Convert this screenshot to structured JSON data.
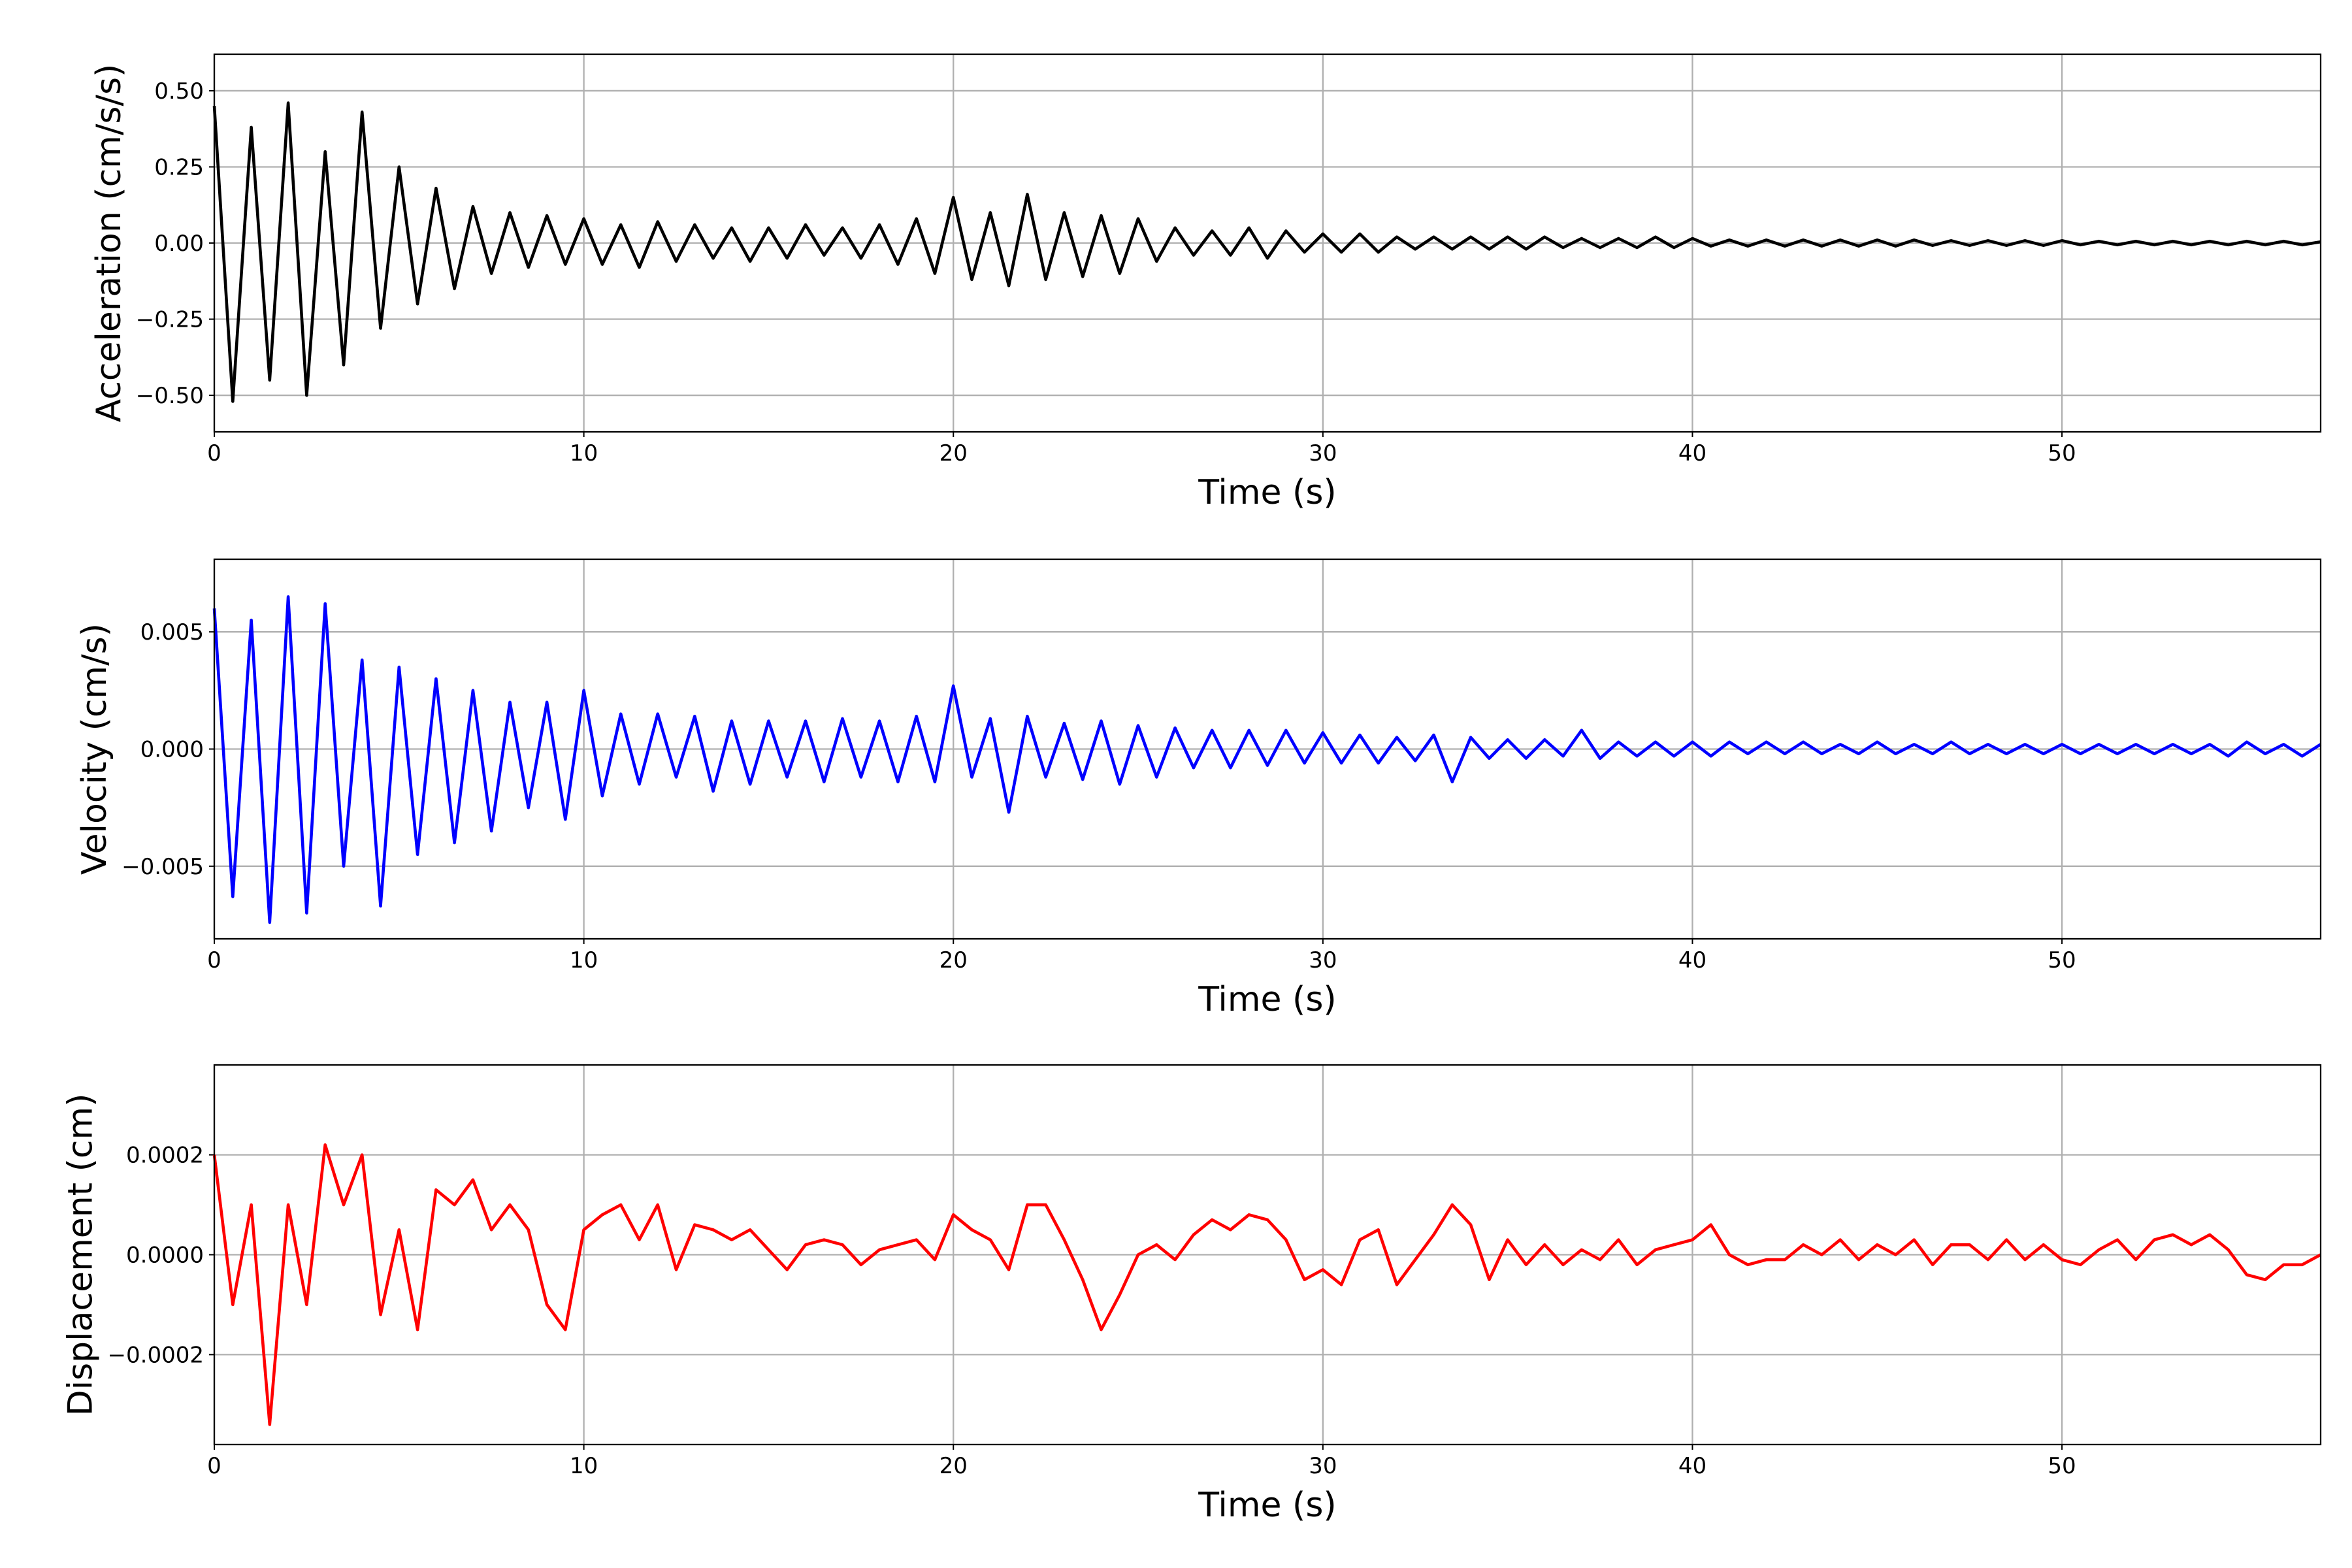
{
  "chart_data": [
    {
      "type": "line",
      "xlabel": "Time (s)",
      "ylabel": "Acceleration (cm/s/s)",
      "color": "#000000",
      "grid": true,
      "xlim": [
        0,
        57
      ],
      "xticks": [
        0,
        10,
        20,
        30,
        40,
        50
      ],
      "ylim": [
        -0.62,
        0.62
      ],
      "yticks": [
        {
          "value": -0.5,
          "label": "−0.50"
        },
        {
          "value": -0.25,
          "label": "−0.25"
        },
        {
          "value": 0,
          "label": "0.00"
        },
        {
          "value": 0.25,
          "label": "0.25"
        },
        {
          "value": 0.5,
          "label": "0.50"
        }
      ],
      "x": [
        0,
        0.5,
        1,
        1.5,
        2,
        2.5,
        3,
        3.5,
        4,
        4.5,
        5,
        5.5,
        6,
        6.5,
        7,
        7.5,
        8,
        8.5,
        9,
        9.5,
        10,
        10.5,
        11,
        11.5,
        12,
        12.5,
        13,
        13.5,
        14,
        14.5,
        15,
        15.5,
        16,
        16.5,
        17,
        17.5,
        18,
        18.5,
        19,
        19.5,
        20,
        20.5,
        21,
        21.5,
        22,
        22.5,
        23,
        23.5,
        24,
        24.5,
        25,
        25.5,
        26,
        26.5,
        27,
        27.5,
        28,
        28.5,
        29,
        29.5,
        30,
        30.5,
        31,
        31.5,
        32,
        32.5,
        33,
        33.5,
        34,
        34.5,
        35,
        35.5,
        36,
        36.5,
        37,
        37.5,
        38,
        38.5,
        39,
        39.5,
        40,
        40.5,
        41,
        41.5,
        42,
        42.5,
        43,
        43.5,
        44,
        44.5,
        45,
        45.5,
        46,
        46.5,
        47,
        47.5,
        48,
        48.5,
        49,
        49.5,
        50,
        50.5,
        51,
        51.5,
        52,
        52.5,
        53,
        53.5,
        54,
        54.5,
        55,
        55.5,
        56,
        56.5,
        57
      ],
      "values": [
        0.45,
        -0.52,
        0.38,
        -0.45,
        0.46,
        -0.5,
        0.3,
        -0.4,
        0.43,
        -0.28,
        0.25,
        -0.2,
        0.18,
        -0.15,
        0.12,
        -0.1,
        0.1,
        -0.08,
        0.09,
        -0.07,
        0.08,
        -0.07,
        0.06,
        -0.08,
        0.07,
        -0.06,
        0.06,
        -0.05,
        0.05,
        -0.06,
        0.05,
        -0.05,
        0.06,
        -0.04,
        0.05,
        -0.05,
        0.06,
        -0.07,
        0.08,
        -0.1,
        0.15,
        -0.12,
        0.1,
        -0.14,
        0.16,
        -0.12,
        0.1,
        -0.11,
        0.09,
        -0.1,
        0.08,
        -0.06,
        0.05,
        -0.04,
        0.04,
        -0.04,
        0.05,
        -0.05,
        0.04,
        -0.03,
        0.03,
        -0.03,
        0.03,
        -0.03,
        0.02,
        -0.02,
        0.02,
        -0.02,
        0.02,
        -0.02,
        0.02,
        -0.02,
        0.02,
        -0.015,
        0.015,
        -0.015,
        0.015,
        -0.015,
        0.02,
        -0.015,
        0.015,
        -0.01,
        0.01,
        -0.01,
        0.01,
        -0.01,
        0.01,
        -0.01,
        0.01,
        -0.01,
        0.01,
        -0.01,
        0.01,
        -0.008,
        0.008,
        -0.008,
        0.008,
        -0.008,
        0.008,
        -0.008,
        0.008,
        -0.006,
        0.006,
        -0.006,
        0.006,
        -0.006,
        0.006,
        -0.006,
        0.006,
        -0.006,
        0.006,
        -0.006,
        0.006,
        -0.006,
        0.004
      ]
    },
    {
      "type": "line",
      "xlabel": "Time (s)",
      "ylabel": "Velocity (cm/s)",
      "color": "#0000ff",
      "grid": true,
      "xlim": [
        0,
        57
      ],
      "xticks": [
        0,
        10,
        20,
        30,
        40,
        50
      ],
      "ylim": [
        -0.0081,
        0.0081
      ],
      "yticks": [
        {
          "value": -0.005,
          "label": "−0.005"
        },
        {
          "value": 0,
          "label": "0.000"
        },
        0.005
      ],
      "x": [
        0,
        0.5,
        1,
        1.5,
        2,
        2.5,
        3,
        3.5,
        4,
        4.5,
        5,
        5.5,
        6,
        6.5,
        7,
        7.5,
        8,
        8.5,
        9,
        9.5,
        10,
        10.5,
        11,
        11.5,
        12,
        12.5,
        13,
        13.5,
        14,
        14.5,
        15,
        15.5,
        16,
        16.5,
        17,
        17.5,
        18,
        18.5,
        19,
        19.5,
        20,
        20.5,
        21,
        21.5,
        22,
        22.5,
        23,
        23.5,
        24,
        24.5,
        25,
        25.5,
        26,
        26.5,
        27,
        27.5,
        28,
        28.5,
        29,
        29.5,
        30,
        30.5,
        31,
        31.5,
        32,
        32.5,
        33,
        33.5,
        34,
        34.5,
        35,
        35.5,
        36,
        36.5,
        37,
        37.5,
        38,
        38.5,
        39,
        39.5,
        40,
        40.5,
        41,
        41.5,
        42,
        42.5,
        43,
        43.5,
        44,
        44.5,
        45,
        45.5,
        46,
        46.5,
        47,
        47.5,
        48,
        48.5,
        49,
        49.5,
        50,
        50.5,
        51,
        51.5,
        52,
        52.5,
        53,
        53.5,
        54,
        54.5,
        55,
        55.5,
        56,
        56.5,
        57
      ],
      "values": [
        0.006,
        -0.0063,
        0.0055,
        -0.0074,
        0.0065,
        -0.007,
        0.0062,
        -0.005,
        0.0038,
        -0.0067,
        0.0035,
        -0.0045,
        0.003,
        -0.004,
        0.0025,
        -0.0035,
        0.002,
        -0.0025,
        0.002,
        -0.003,
        0.0025,
        -0.002,
        0.0015,
        -0.0015,
        0.0015,
        -0.0012,
        0.0014,
        -0.0018,
        0.0012,
        -0.0015,
        0.0012,
        -0.0012,
        0.0012,
        -0.0014,
        0.0013,
        -0.0012,
        0.0012,
        -0.0014,
        0.0014,
        -0.0014,
        0.0027,
        -0.0012,
        0.0013,
        -0.0027,
        0.0014,
        -0.0012,
        0.0011,
        -0.0013,
        0.0012,
        -0.0015,
        0.001,
        -0.0012,
        0.0009,
        -0.0008,
        0.0008,
        -0.0008,
        0.0008,
        -0.0007,
        0.0008,
        -0.0006,
        0.0007,
        -0.0006,
        0.0006,
        -0.0006,
        0.0005,
        -0.0005,
        0.0006,
        -0.0014,
        0.0005,
        -0.0004,
        0.0004,
        -0.0004,
        0.0004,
        -0.0003,
        0.0008,
        -0.0004,
        0.0003,
        -0.0003,
        0.0003,
        -0.0003,
        0.0003,
        -0.0003,
        0.0003,
        -0.0002,
        0.0003,
        -0.0002,
        0.0003,
        -0.0002,
        0.0002,
        -0.0002,
        0.0003,
        -0.0002,
        0.0002,
        -0.0002,
        0.0003,
        -0.0002,
        0.0002,
        -0.0002,
        0.0002,
        -0.0002,
        0.0002,
        -0.0002,
        0.0002,
        -0.0002,
        0.0002,
        -0.0002,
        0.0002,
        -0.0002,
        0.0002,
        -0.0003,
        0.0003,
        -0.0002,
        0.0002,
        -0.0003,
        0.0002
      ]
    },
    {
      "type": "line",
      "xlabel": "Time (s)",
      "ylabel": "Displacement (cm)",
      "color": "#ff0000",
      "grid": true,
      "xlim": [
        0,
        57
      ],
      "xticks": [
        0,
        10,
        20,
        30,
        40,
        50
      ],
      "ylim": [
        -0.00038,
        0.00038
      ],
      "yticks": [
        {
          "value": -0.0002,
          "label": "−0.0002"
        },
        {
          "value": 0,
          "label": "0.0000"
        },
        0.0002
      ],
      "x": [
        0,
        0.5,
        1,
        1.5,
        2,
        2.5,
        3,
        3.5,
        4,
        4.5,
        5,
        5.5,
        6,
        6.5,
        7,
        7.5,
        8,
        8.5,
        9,
        9.5,
        10,
        10.5,
        11,
        11.5,
        12,
        12.5,
        13,
        13.5,
        14,
        14.5,
        15,
        15.5,
        16,
        16.5,
        17,
        17.5,
        18,
        18.5,
        19,
        19.5,
        20,
        20.5,
        21,
        21.5,
        22,
        22.5,
        23,
        23.5,
        24,
        24.5,
        25,
        25.5,
        26,
        26.5,
        27,
        27.5,
        28,
        28.5,
        29,
        29.5,
        30,
        30.5,
        31,
        31.5,
        32,
        32.5,
        33,
        33.5,
        34,
        34.5,
        35,
        35.5,
        36,
        36.5,
        37,
        37.5,
        38,
        38.5,
        39,
        39.5,
        40,
        40.5,
        41,
        41.5,
        42,
        42.5,
        43,
        43.5,
        44,
        44.5,
        45,
        45.5,
        46,
        46.5,
        47,
        47.5,
        48,
        48.5,
        49,
        49.5,
        50,
        50.5,
        51,
        51.5,
        52,
        52.5,
        53,
        53.5,
        54,
        54.5,
        55,
        55.5,
        56,
        56.5,
        57
      ],
      "values": [
        0.0002,
        -0.0001,
        0.0001,
        -0.00034,
        0.0001,
        -0.0001,
        0.00022,
        0.0001,
        0.0002,
        -0.00012,
        5e-05,
        -0.00015,
        0.00013,
        0.0001,
        0.00015,
        5e-05,
        0.0001,
        5e-05,
        -0.0001,
        -0.00015,
        5e-05,
        8e-05,
        0.0001,
        3e-05,
        0.0001,
        -3e-05,
        6e-05,
        5e-05,
        3e-05,
        5e-05,
        1e-05,
        -3e-05,
        2e-05,
        3e-05,
        2e-05,
        -2e-05,
        1e-05,
        2e-05,
        3e-05,
        -1e-05,
        8e-05,
        5e-05,
        3e-05,
        -3e-05,
        0.0001,
        0.0001,
        3e-05,
        -5e-05,
        -0.00015,
        -8e-05,
        0,
        2e-05,
        -1e-05,
        4e-05,
        7e-05,
        5e-05,
        8e-05,
        7e-05,
        3e-05,
        -5e-05,
        -3e-05,
        -6e-05,
        3e-05,
        5e-05,
        -6e-05,
        -1e-05,
        4e-05,
        0.0001,
        6e-05,
        -5e-05,
        3e-05,
        -2e-05,
        2e-05,
        -2e-05,
        1e-05,
        -1e-05,
        3e-05,
        -2e-05,
        1e-05,
        2e-05,
        3e-05,
        6e-05,
        0,
        -2e-05,
        -1e-05,
        -1e-05,
        2e-05,
        0,
        3e-05,
        -1e-05,
        2e-05,
        0,
        3e-05,
        -2e-05,
        2e-05,
        2e-05,
        -1e-05,
        3e-05,
        -1e-05,
        2e-05,
        -1e-05,
        -2e-05,
        1e-05,
        3e-05,
        -1e-05,
        3e-05,
        4e-05,
        2e-05,
        4e-05,
        1e-05,
        -4e-05,
        -5e-05,
        -2e-05,
        -2e-05,
        0
      ]
    }
  ]
}
